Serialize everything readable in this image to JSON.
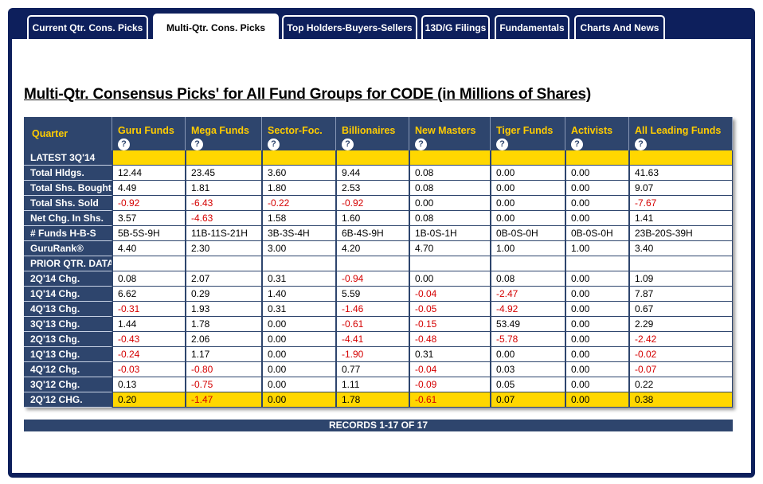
{
  "tabs": [
    {
      "label": "Current Qtr. Cons. Picks",
      "active": false
    },
    {
      "label": "Multi-Qtr. Cons. Picks",
      "active": true
    },
    {
      "label": "Top Holders-Buyers-Sellers",
      "active": false
    },
    {
      "label": "13D/G Filings",
      "active": false
    },
    {
      "label": "Fundamentals",
      "active": false
    },
    {
      "label": "Charts And News",
      "active": false
    }
  ],
  "page": {
    "title": "Multi-Qtr. Consensus Picks' for All Fund Groups for CODE (in Millions of Shares)",
    "records": "RECORDS 1-17 OF 17"
  },
  "table": {
    "quarter_header": "Quarter",
    "help_icon": "?",
    "columns": [
      "Guru Funds",
      "Mega Funds",
      "Sector-Foc.",
      "Billionaires",
      "New Masters",
      "Tiger Funds",
      "Activists",
      "All Leading Funds"
    ],
    "rows": [
      {
        "label": "LATEST 3Q'14",
        "style": "yellow",
        "values": [
          "",
          "",
          "",
          "",
          "",
          "",
          "",
          ""
        ]
      },
      {
        "label": "Total Hldgs.",
        "values": [
          "12.44",
          "23.45",
          "3.60",
          "9.44",
          "0.08",
          "0.00",
          "0.00",
          "41.63"
        ]
      },
      {
        "label": "Total Shs. Bought",
        "values": [
          "4.49",
          "1.81",
          "1.80",
          "2.53",
          "0.08",
          "0.00",
          "0.00",
          "9.07"
        ]
      },
      {
        "label": "Total Shs. Sold",
        "values": [
          "-0.92",
          "-6.43",
          "-0.22",
          "-0.92",
          "0.00",
          "0.00",
          "0.00",
          "-7.67"
        ]
      },
      {
        "label": "Net Chg. In Shs.",
        "values": [
          "3.57",
          "-4.63",
          "1.58",
          "1.60",
          "0.08",
          "0.00",
          "0.00",
          "1.41"
        ]
      },
      {
        "label": "# Funds H-B-S",
        "values": [
          "5B-5S-9H",
          "11B-11S-21H",
          "3B-3S-4H",
          "6B-4S-9H",
          "1B-0S-1H",
          "0B-0S-0H",
          "0B-0S-0H",
          "23B-20S-39H"
        ]
      },
      {
        "label": "GuruRank®",
        "values": [
          "4.40",
          "2.30",
          "3.00",
          "4.20",
          "4.70",
          "1.00",
          "1.00",
          "3.40"
        ]
      },
      {
        "label": "PRIOR QTR. DATA",
        "values": [
          "",
          "",
          "",
          "",
          "",
          "",
          "",
          ""
        ]
      },
      {
        "label": "2Q'14 Chg.",
        "values": [
          "0.08",
          "2.07",
          "0.31",
          "-0.94",
          "0.00",
          "0.08",
          "0.00",
          "1.09"
        ]
      },
      {
        "label": "1Q'14 Chg.",
        "values": [
          "6.62",
          "0.29",
          "1.40",
          "5.59",
          "-0.04",
          "-2.47",
          "0.00",
          "7.87"
        ]
      },
      {
        "label": "4Q'13 Chg.",
        "values": [
          "-0.31",
          "1.93",
          "0.31",
          "-1.46",
          "-0.05",
          "-4.92",
          "0.00",
          "0.67"
        ]
      },
      {
        "label": "3Q'13 Chg.",
        "values": [
          "1.44",
          "1.78",
          "0.00",
          "-0.61",
          "-0.15",
          "53.49",
          "0.00",
          "2.29"
        ]
      },
      {
        "label": "2Q'13 Chg.",
        "values": [
          "-0.43",
          "2.06",
          "0.00",
          "-4.41",
          "-0.48",
          "-5.78",
          "0.00",
          "-2.42"
        ]
      },
      {
        "label": "1Q'13 Chg.",
        "values": [
          "-0.24",
          "1.17",
          "0.00",
          "-1.90",
          "0.31",
          "0.00",
          "0.00",
          "-0.02"
        ]
      },
      {
        "label": "4Q'12 Chg.",
        "values": [
          "-0.03",
          "-0.80",
          "0.00",
          "0.77",
          "-0.04",
          "0.03",
          "0.00",
          "-0.07"
        ]
      },
      {
        "label": "3Q'12 Chg.",
        "values": [
          "0.13",
          "-0.75",
          "0.00",
          "1.11",
          "-0.09",
          "0.05",
          "0.00",
          "0.22"
        ]
      },
      {
        "label": "2Q'12 CHG.",
        "style": "yellow",
        "values": [
          "0.20",
          "-1.47",
          "0.00",
          "1.78",
          "-0.61",
          "0.07",
          "0.00",
          "0.38"
        ]
      }
    ]
  },
  "colors": {
    "navy": "#0d1f5c",
    "table_header": "#2e456d",
    "header_text": "#ffcc00",
    "highlight": "#ffd700",
    "negative": "#d40000"
  }
}
